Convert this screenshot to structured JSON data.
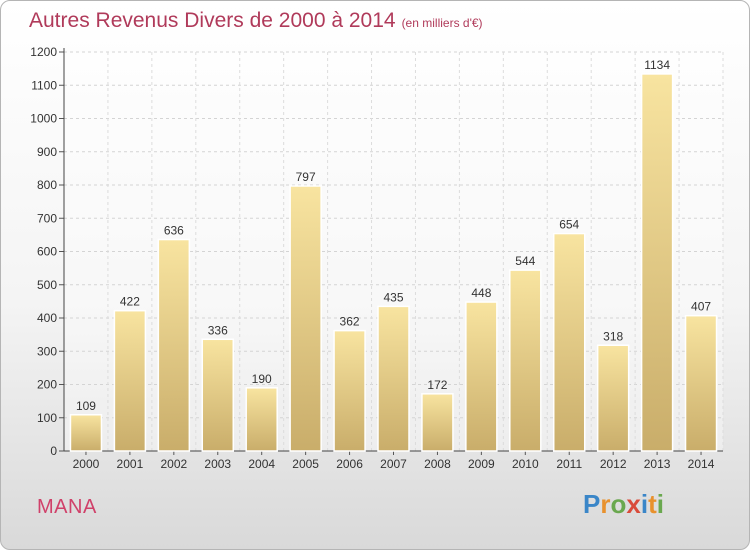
{
  "chart_data": {
    "type": "bar",
    "title": "Autres Revenus Divers de 2000 à 2014",
    "subtitle": "(en milliers d'€)",
    "categories": [
      "2000",
      "2001",
      "2002",
      "2003",
      "2004",
      "2005",
      "2006",
      "2007",
      "2008",
      "2009",
      "2010",
      "2011",
      "2012",
      "2013",
      "2014"
    ],
    "values": [
      109,
      422,
      636,
      336,
      190,
      797,
      362,
      435,
      172,
      448,
      544,
      654,
      318,
      1134,
      407
    ],
    "yticks": [
      0,
      100,
      200,
      300,
      400,
      500,
      600,
      700,
      800,
      900,
      1000,
      1100,
      1200
    ],
    "ylim": [
      0,
      1200
    ],
    "grid": true,
    "xlabel": "",
    "ylabel": ""
  },
  "place_name": "MANA",
  "logo": {
    "letters": [
      "P",
      "r",
      "o",
      "x",
      "i",
      "t",
      "i"
    ],
    "colors": [
      "#3a86c8",
      "#e8912d",
      "#6aa84f",
      "#d94b3a",
      "#3a86c8",
      "#e8912d",
      "#6aa84f"
    ]
  },
  "colors": {
    "bar_light": "#f8e4a0",
    "bar_dark": "#c9ad6a",
    "title": "#b03a5a"
  }
}
